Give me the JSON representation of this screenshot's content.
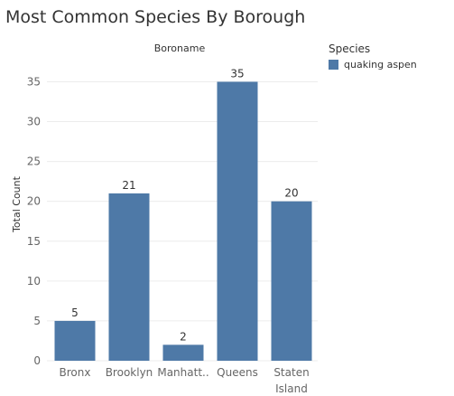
{
  "colors": {
    "bar": "#4e79a7"
  },
  "chart_data": {
    "type": "bar",
    "title": "Most Common Species By Borough",
    "column_header": "Boroname",
    "ylabel": "Total Count",
    "categories": [
      "Bronx",
      "Brooklyn",
      "Manhatt..",
      "Queens",
      "Staten Island"
    ],
    "series": [
      {
        "name": "quaking aspen",
        "values": [
          5,
          21,
          2,
          35,
          20
        ]
      }
    ],
    "ylim": [
      0,
      38
    ],
    "yticks": [
      0,
      5,
      10,
      15,
      20,
      25,
      30,
      35
    ],
    "grid": true,
    "legend": {
      "title": "Species",
      "position": "top-right"
    }
  }
}
